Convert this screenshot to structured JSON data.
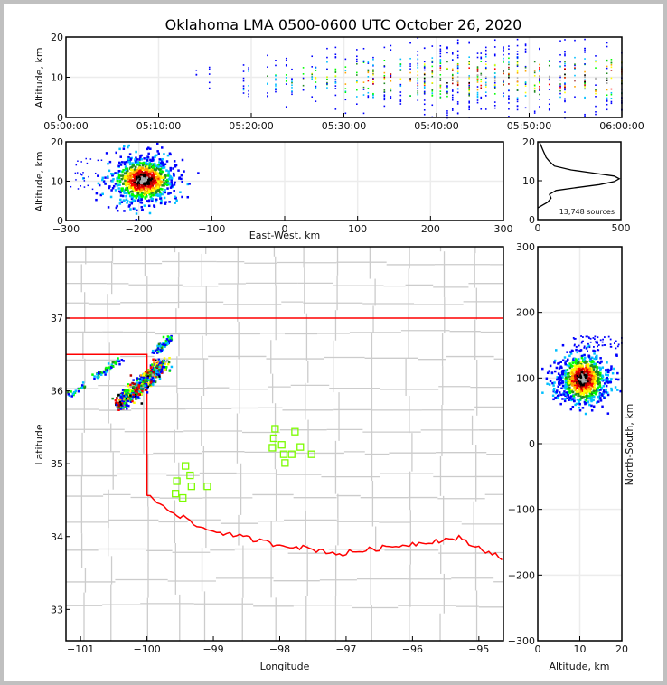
{
  "title": "Oklahoma LMA 0500-0600 UTC October 26, 2020",
  "colors": {
    "density_low": "#0000ff",
    "density_mid": "#00ff00",
    "density_high": "#ff0000",
    "density_peak": "#000000",
    "state_border": "#ff0000",
    "county_border": "#cccccc",
    "station_marker": "#7cfc00"
  },
  "chart_data": [
    {
      "id": "time-height",
      "type": "heatmap",
      "title": "",
      "xlabel": "",
      "ylabel": "Altitude, km",
      "xticks": [
        "05:00:00",
        "05:10:00",
        "05:20:00",
        "05:30:00",
        "05:40:00",
        "05:50:00",
        "06:00:00"
      ],
      "xlim_minutes": [
        0,
        60
      ],
      "ylim": [
        0,
        20
      ],
      "yticks": [
        0,
        10,
        20
      ],
      "activity_start_minute": 14,
      "activity_end_minute": 60,
      "core_altitude_km": 10,
      "grid": true
    },
    {
      "id": "ew-height",
      "type": "heatmap",
      "xlabel": "East-West, km",
      "ylabel": "Altitude, km",
      "xlim": [
        -300,
        300
      ],
      "xticks": [
        -300,
        -200,
        -100,
        0,
        100,
        200,
        300
      ],
      "ylim": [
        0,
        20
      ],
      "yticks": [
        0,
        10,
        20
      ],
      "cluster_center_ew_km": -195,
      "cluster_center_alt_km": 10.5,
      "grid": true
    },
    {
      "id": "altitude-histogram",
      "type": "line",
      "xlim": [
        0,
        500
      ],
      "xticks": [
        0,
        500
      ],
      "ylim": [
        0,
        20
      ],
      "yticks": [
        0,
        10,
        20
      ],
      "annotation": "13,748 sources",
      "profile": [
        [
          0,
          3
        ],
        [
          20,
          3.5
        ],
        [
          60,
          4.5
        ],
        [
          80,
          5.5
        ],
        [
          70,
          6.5
        ],
        [
          110,
          7.5
        ],
        [
          230,
          8.2
        ],
        [
          370,
          9
        ],
        [
          460,
          9.8
        ],
        [
          490,
          10.5
        ],
        [
          460,
          11.2
        ],
        [
          330,
          12
        ],
        [
          200,
          12.8
        ],
        [
          100,
          13.8
        ],
        [
          70,
          15
        ],
        [
          50,
          16
        ],
        [
          40,
          17
        ],
        [
          30,
          18
        ],
        [
          20,
          19
        ],
        [
          10,
          20
        ]
      ]
    },
    {
      "id": "plan-view",
      "type": "heatmap",
      "xlabel": "Longitude",
      "ylabel": "Latitude",
      "xlim": [
        -101.22,
        -94.63
      ],
      "xticks": [
        -101,
        -100,
        -99,
        -98,
        -97,
        -96,
        -95
      ],
      "ylim": [
        32.57,
        37.98
      ],
      "yticks": [
        33,
        34,
        35,
        36,
        37
      ],
      "stations": [
        [
          -98.07,
          35.48
        ],
        [
          -97.77,
          35.44
        ],
        [
          -98.09,
          35.35
        ],
        [
          -97.97,
          35.26
        ],
        [
          -98.11,
          35.22
        ],
        [
          -97.69,
          35.23
        ],
        [
          -97.82,
          35.13
        ],
        [
          -97.52,
          35.13
        ],
        [
          -97.94,
          35.13
        ],
        [
          -97.92,
          35.01
        ],
        [
          -99.42,
          34.97
        ],
        [
          -99.35,
          34.84
        ],
        [
          -99.55,
          34.76
        ],
        [
          -99.33,
          34.69
        ],
        [
          -99.09,
          34.69
        ],
        [
          -99.57,
          34.59
        ],
        [
          -99.46,
          34.53
        ]
      ],
      "grid": false
    },
    {
      "id": "ns-height",
      "type": "heatmap",
      "xlabel": "Altitude, km",
      "ylabel": "North-South, km",
      "xlim": [
        0,
        20
      ],
      "xticks": [
        0,
        10,
        20
      ],
      "ylim": [
        -300,
        300
      ],
      "yticks": [
        -300,
        -200,
        -100,
        0,
        100,
        200,
        300
      ],
      "cluster_center_alt_km": 10.5,
      "cluster_center_ns_km": 100,
      "grid": true
    }
  ]
}
